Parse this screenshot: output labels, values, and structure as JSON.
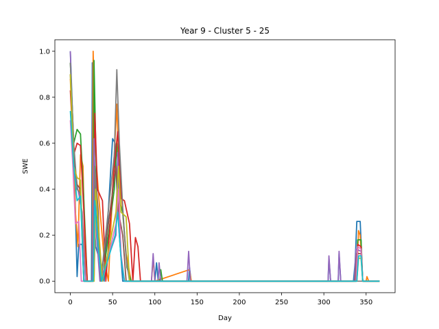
{
  "chart_data": {
    "type": "line",
    "title": "Year 9 - Cluster 5 - 25",
    "xlabel": "Day",
    "ylabel": "SWE",
    "xlim": [
      -18.3,
      384.3
    ],
    "ylim": [
      -0.05,
      1.05
    ],
    "x_ticks": [
      0,
      50,
      100,
      150,
      200,
      250,
      300,
      350
    ],
    "y_ticks": [
      0.0,
      0.2,
      0.4,
      0.6,
      0.8,
      1.0
    ],
    "x_tick_labels": [
      "0",
      "50",
      "100",
      "150",
      "200",
      "250",
      "300",
      "350"
    ],
    "y_tick_labels": [
      "0.0",
      "0.2",
      "0.4",
      "0.6",
      "0.8",
      "1.0"
    ],
    "grid": false,
    "series": [
      {
        "color": "#1f77b4",
        "points": [
          [
            0,
            1.0
          ],
          [
            2,
            0.79
          ],
          [
            5,
            0.45
          ],
          [
            8,
            0.02
          ],
          [
            10,
            0.16
          ],
          [
            14,
            0.16
          ],
          [
            16,
            0.0
          ],
          [
            25,
            0.0
          ],
          [
            26,
            0.95
          ],
          [
            28,
            0.3
          ],
          [
            30,
            0.15
          ],
          [
            34,
            0.1
          ],
          [
            40,
            0.0
          ],
          [
            50,
            0.62
          ],
          [
            53,
            0.6
          ],
          [
            55,
            0.4
          ],
          [
            58,
            0.2
          ],
          [
            62,
            0.0
          ],
          [
            100,
            0.0
          ],
          [
            102,
            0.08
          ],
          [
            104,
            0.0
          ],
          [
            140,
            0.0
          ],
          [
            141,
            0.06
          ],
          [
            143,
            0.0
          ],
          [
            305,
            0.0
          ],
          [
            306,
            0.1
          ],
          [
            308,
            0.0
          ],
          [
            317,
            0.0
          ],
          [
            318,
            0.12
          ],
          [
            320,
            0.0
          ],
          [
            335,
            0.0
          ],
          [
            337,
            0.08
          ],
          [
            339,
            0.26
          ],
          [
            343,
            0.26
          ],
          [
            346,
            0.0
          ],
          [
            366,
            0.0
          ]
        ]
      },
      {
        "color": "#ff7f0e",
        "points": [
          [
            0,
            0.88
          ],
          [
            3,
            0.6
          ],
          [
            6,
            0.3
          ],
          [
            9,
            0.15
          ],
          [
            12,
            0.55
          ],
          [
            15,
            0.5
          ],
          [
            18,
            0.0
          ],
          [
            26,
            0.0
          ],
          [
            27,
            1.0
          ],
          [
            30,
            0.55
          ],
          [
            34,
            0.35
          ],
          [
            40,
            0.1
          ],
          [
            45,
            0.0
          ],
          [
            52,
            0.55
          ],
          [
            55,
            0.77
          ],
          [
            57,
            0.55
          ],
          [
            62,
            0.3
          ],
          [
            66,
            0.12
          ],
          [
            72,
            0.0
          ],
          [
            96,
            0.0
          ],
          [
            98,
            0.1
          ],
          [
            100,
            0.0
          ],
          [
            141,
            0.05
          ],
          [
            143,
            0.0
          ],
          [
            339,
            0.0
          ],
          [
            341,
            0.22
          ],
          [
            343,
            0.2
          ],
          [
            346,
            0.0
          ],
          [
            350,
            0.0
          ],
          [
            351,
            0.02
          ],
          [
            353,
            0.0
          ],
          [
            366,
            0.0
          ]
        ]
      },
      {
        "color": "#2ca02c",
        "points": [
          [
            0,
            0.95
          ],
          [
            4,
            0.6
          ],
          [
            8,
            0.66
          ],
          [
            12,
            0.64
          ],
          [
            16,
            0.35
          ],
          [
            20,
            0.0
          ],
          [
            27,
            0.0
          ],
          [
            28,
            0.96
          ],
          [
            32,
            0.25
          ],
          [
            38,
            0.0
          ],
          [
            52,
            0.4
          ],
          [
            55,
            0.6
          ],
          [
            58,
            0.35
          ],
          [
            62,
            0.3
          ],
          [
            67,
            0.06
          ],
          [
            72,
            0.0
          ],
          [
            106,
            0.0
          ],
          [
            107,
            0.05
          ],
          [
            109,
            0.0
          ],
          [
            338,
            0.0
          ],
          [
            340,
            0.18
          ],
          [
            344,
            0.18
          ],
          [
            346,
            0.0
          ],
          [
            366,
            0.0
          ]
        ]
      },
      {
        "color": "#d62728",
        "points": [
          [
            0,
            0.83
          ],
          [
            4,
            0.55
          ],
          [
            8,
            0.6
          ],
          [
            12,
            0.59
          ],
          [
            16,
            0.3
          ],
          [
            20,
            0.0
          ],
          [
            27,
            0.0
          ],
          [
            29,
            0.73
          ],
          [
            32,
            0.4
          ],
          [
            38,
            0.35
          ],
          [
            42,
            0.0
          ],
          [
            52,
            0.5
          ],
          [
            56,
            0.65
          ],
          [
            60,
            0.36
          ],
          [
            64,
            0.35
          ],
          [
            70,
            0.25
          ],
          [
            74,
            0.0
          ],
          [
            77,
            0.19
          ],
          [
            80,
            0.15
          ],
          [
            83,
            0.0
          ],
          [
            338,
            0.0
          ],
          [
            340,
            0.16
          ],
          [
            344,
            0.15
          ],
          [
            346,
            0.0
          ],
          [
            366,
            0.0
          ]
        ]
      },
      {
        "color": "#9467bd",
        "points": [
          [
            0,
            1.0
          ],
          [
            3,
            0.6
          ],
          [
            6,
            0.45
          ],
          [
            10,
            0.38
          ],
          [
            14,
            0.3
          ],
          [
            18,
            0.0
          ],
          [
            26,
            0.0
          ],
          [
            28,
            0.62
          ],
          [
            31,
            0.2
          ],
          [
            35,
            0.0
          ],
          [
            54,
            0.2
          ],
          [
            56,
            0.56
          ],
          [
            60,
            0.1
          ],
          [
            64,
            0.0
          ],
          [
            96,
            0.0
          ],
          [
            98,
            0.12
          ],
          [
            100,
            0.0
          ],
          [
            104,
            0.0
          ],
          [
            105,
            0.08
          ],
          [
            107,
            0.0
          ],
          [
            138,
            0.0
          ],
          [
            140,
            0.13
          ],
          [
            142,
            0.0
          ],
          [
            305,
            0.0
          ],
          [
            306,
            0.11
          ],
          [
            308,
            0.0
          ],
          [
            317,
            0.0
          ],
          [
            318,
            0.13
          ],
          [
            320,
            0.0
          ],
          [
            336,
            0.0
          ],
          [
            338,
            0.14
          ],
          [
            344,
            0.13
          ],
          [
            346,
            0.0
          ],
          [
            366,
            0.0
          ]
        ]
      },
      {
        "color": "#8c564b",
        "points": [
          [
            0,
            0.9
          ],
          [
            4,
            0.55
          ],
          [
            8,
            0.42
          ],
          [
            12,
            0.4
          ],
          [
            16,
            0.0
          ],
          [
            28,
            0.0
          ],
          [
            30,
            0.45
          ],
          [
            33,
            0.3
          ],
          [
            36,
            0.0
          ],
          [
            54,
            0.5
          ],
          [
            57,
            0.3
          ],
          [
            62,
            0.2
          ],
          [
            66,
            0.0
          ],
          [
            337,
            0.0
          ],
          [
            339,
            0.12
          ],
          [
            344,
            0.12
          ],
          [
            346,
            0.0
          ],
          [
            366,
            0.0
          ]
        ]
      },
      {
        "color": "#e377c2",
        "points": [
          [
            0,
            0.7
          ],
          [
            3,
            0.5
          ],
          [
            6,
            0.25
          ],
          [
            10,
            0.26
          ],
          [
            13,
            0.0
          ],
          [
            28,
            0.0
          ],
          [
            30,
            0.3
          ],
          [
            34,
            0.1
          ],
          [
            38,
            0.0
          ],
          [
            54,
            0.25
          ],
          [
            57,
            0.4
          ],
          [
            60,
            0.12
          ],
          [
            64,
            0.0
          ],
          [
            338,
            0.0
          ],
          [
            340,
            0.15
          ],
          [
            344,
            0.14
          ],
          [
            346,
            0.0
          ],
          [
            366,
            0.0
          ]
        ]
      },
      {
        "color": "#7f7f7f",
        "points": [
          [
            0,
            0.95
          ],
          [
            4,
            0.6
          ],
          [
            8,
            0.4
          ],
          [
            12,
            0.38
          ],
          [
            16,
            0.0
          ],
          [
            27,
            0.0
          ],
          [
            29,
            0.5
          ],
          [
            32,
            0.3
          ],
          [
            36,
            0.0
          ],
          [
            52,
            0.55
          ],
          [
            55,
            0.92
          ],
          [
            58,
            0.6
          ],
          [
            62,
            0.32
          ],
          [
            66,
            0.1
          ],
          [
            70,
            0.0
          ],
          [
            366,
            0.0
          ]
        ]
      },
      {
        "color": "#bcbd22",
        "points": [
          [
            0,
            0.9
          ],
          [
            4,
            0.5
          ],
          [
            8,
            0.45
          ],
          [
            12,
            0.44
          ],
          [
            16,
            0.0
          ],
          [
            28,
            0.0
          ],
          [
            30,
            0.4
          ],
          [
            34,
            0.2
          ],
          [
            38,
            0.0
          ],
          [
            54,
            0.3
          ],
          [
            57,
            0.5
          ],
          [
            60,
            0.3
          ],
          [
            66,
            0.28
          ],
          [
            70,
            0.0
          ],
          [
            339,
            0.0
          ],
          [
            341,
            0.1
          ],
          [
            344,
            0.1
          ],
          [
            346,
            0.0
          ],
          [
            366,
            0.0
          ]
        ]
      },
      {
        "color": "#17becf",
        "points": [
          [
            0,
            0.74
          ],
          [
            4,
            0.5
          ],
          [
            8,
            0.35
          ],
          [
            12,
            0.37
          ],
          [
            16,
            0.0
          ],
          [
            27,
            0.0
          ],
          [
            29,
            0.35
          ],
          [
            33,
            0.15
          ],
          [
            37,
            0.0
          ],
          [
            53,
            0.2
          ],
          [
            56,
            0.3
          ],
          [
            60,
            0.1
          ],
          [
            64,
            0.0
          ],
          [
            339,
            0.0
          ],
          [
            341,
            0.11
          ],
          [
            344,
            0.11
          ],
          [
            346,
            0.0
          ],
          [
            366,
            0.0
          ]
        ]
      }
    ]
  }
}
